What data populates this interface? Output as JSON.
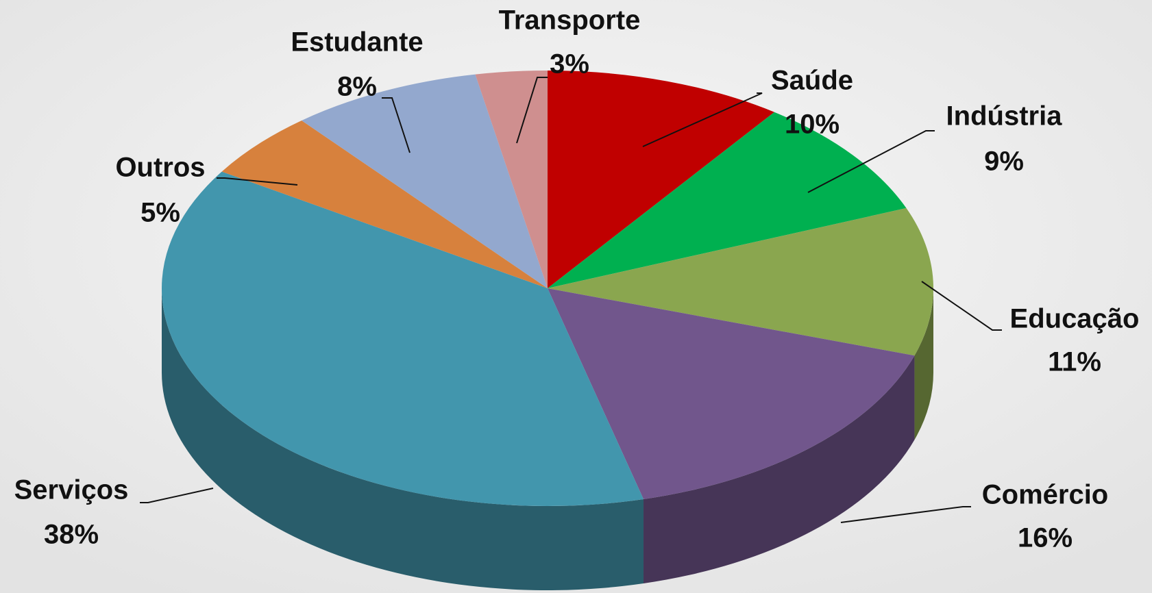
{
  "chart_data": {
    "type": "pie",
    "categories": [
      "Saúde",
      "Indústria",
      "Educação",
      "Comércio",
      "Serviços",
      "Outros",
      "Estudante",
      "Transporte"
    ],
    "values": [
      10,
      9,
      11,
      16,
      38,
      5,
      8,
      3
    ],
    "value_labels": [
      "10%",
      "9%",
      "11%",
      "16%",
      "38%",
      "5%",
      "8%",
      "3%"
    ],
    "colors": [
      "#c00000",
      "#00b050",
      "#8aa64f",
      "#71568c",
      "#4296ad",
      "#d7813d",
      "#93a8ce",
      "#cf8f8f"
    ]
  }
}
